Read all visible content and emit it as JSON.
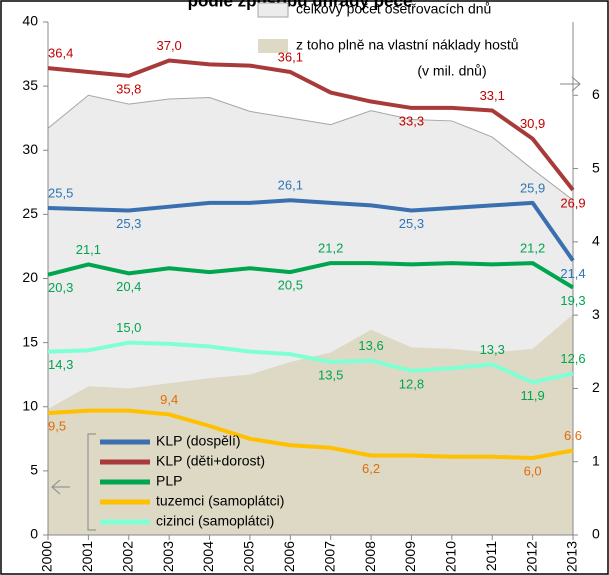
{
  "chart_data": {
    "type": "line",
    "title": "podle způsobu úhrady péče",
    "annotation": "(v mil. dnů)",
    "categories": [
      "2000",
      "2001",
      "2002",
      "2003",
      "2004",
      "2005",
      "2006",
      "2007",
      "2008",
      "2009",
      "2010",
      "2011",
      "2012",
      "2013"
    ],
    "ylim": [
      0,
      40
    ],
    "yticks": [
      0,
      5,
      10,
      15,
      20,
      25,
      30,
      35,
      40
    ],
    "y2lim": [
      0,
      7
    ],
    "y2ticks": [
      0,
      1,
      2,
      3,
      4,
      5,
      6
    ],
    "legend": "lower left",
    "series": [
      {
        "name": "celkový počet ošetřovacích dnů",
        "type": "area",
        "axis": "y2",
        "color": "#ececec",
        "stroke": "#a6a6a6",
        "values": [
          5.55,
          6.0,
          5.88,
          5.95,
          5.97,
          5.78,
          5.69,
          5.6,
          5.79,
          5.67,
          5.65,
          5.43,
          4.99,
          4.57
        ]
      },
      {
        "name": "z toho plně na vlastní náklady hostů",
        "type": "area",
        "axis": "y2",
        "color": "#ddd9c4",
        "values": [
          1.72,
          2.03,
          2.0,
          2.07,
          2.14,
          2.19,
          2.36,
          2.49,
          2.8,
          2.56,
          2.54,
          2.49,
          2.54,
          3.01
        ]
      },
      {
        "name": "KLP (dospělí)",
        "color": "#3a6fb0",
        "label_color": "#2e75b6",
        "values": [
          25.5,
          25.4,
          25.3,
          25.6,
          25.9,
          25.9,
          26.1,
          25.9,
          25.7,
          25.3,
          25.5,
          25.7,
          25.9,
          21.4
        ],
        "value_labels": [
          "25,5",
          null,
          "25,3",
          null,
          null,
          null,
          "26,1",
          null,
          null,
          "25,3",
          null,
          null,
          "25,9",
          "21,4"
        ]
      },
      {
        "name": "KLP (děti+dorost)",
        "color": "#a83a3a",
        "label_color": "#c00000",
        "values": [
          36.4,
          36.1,
          35.8,
          37.0,
          36.7,
          36.6,
          36.1,
          34.5,
          33.8,
          33.3,
          33.3,
          33.1,
          30.9,
          26.9
        ],
        "value_labels": [
          "36,4",
          null,
          "35,8",
          "37,0",
          null,
          null,
          "36,1",
          null,
          null,
          "33,3",
          null,
          "33,1",
          "30,9",
          "26,9"
        ]
      },
      {
        "name": "PLP",
        "color": "#00a550",
        "label_color": "#00a550",
        "values": [
          20.3,
          21.1,
          20.4,
          20.8,
          20.5,
          20.8,
          20.5,
          21.2,
          21.2,
          21.1,
          21.2,
          21.1,
          21.2,
          19.3
        ],
        "value_labels": [
          "20,3",
          "21,1",
          "20,4",
          null,
          null,
          null,
          "20,5",
          "21,2",
          null,
          null,
          null,
          null,
          "21,2",
          "19,3"
        ]
      },
      {
        "name": "tuzemci (samoplátci)",
        "color": "#ffc000",
        "label_color": "#e36c09",
        "values": [
          9.5,
          9.7,
          9.7,
          9.4,
          8.5,
          7.5,
          7.0,
          6.8,
          6.2,
          6.2,
          6.1,
          6.1,
          6.0,
          6.6
        ],
        "value_labels": [
          "9,5",
          null,
          null,
          "9,4",
          null,
          null,
          null,
          null,
          "6,2",
          null,
          null,
          null,
          "6,0",
          "6,6"
        ]
      },
      {
        "name": "cizinci (samoplátci)",
        "color": "#7fffd4",
        "label_color": "#00a550",
        "values": [
          14.3,
          14.4,
          15.0,
          14.9,
          14.7,
          14.3,
          14.1,
          13.5,
          13.6,
          12.8,
          13.0,
          13.3,
          11.9,
          12.6
        ],
        "value_labels": [
          "14,3",
          null,
          "15,0",
          null,
          null,
          null,
          null,
          "13,5",
          "13,6",
          "12,8",
          null,
          "13,3",
          "11,9",
          "12,6"
        ]
      }
    ]
  }
}
